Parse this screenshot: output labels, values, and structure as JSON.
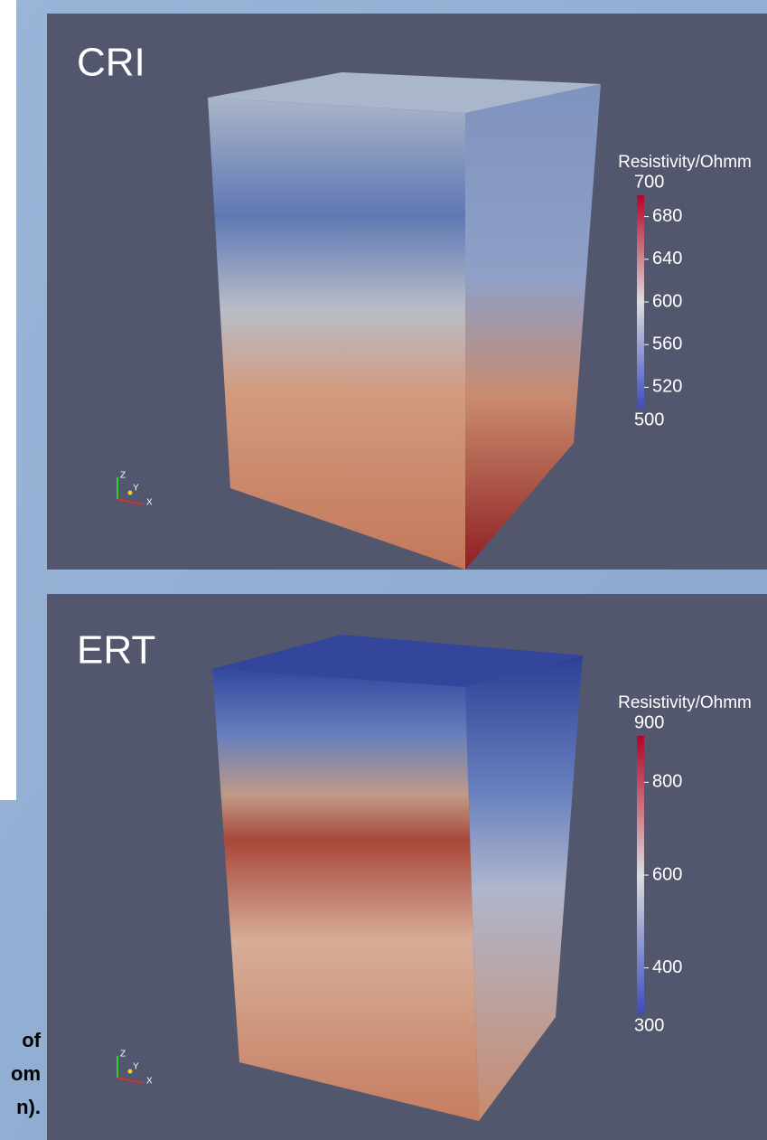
{
  "panels": [
    {
      "label": "CRI",
      "colorbar": {
        "title": "Resistivity/Ohmm",
        "range": [
          500,
          700
        ],
        "ticks": [
          520,
          560,
          600,
          640,
          680
        ]
      },
      "axes": [
        "Z",
        "Y",
        "X"
      ]
    },
    {
      "label": "ERT",
      "colorbar": {
        "title": "Resistivity/Ohmm",
        "range": [
          300,
          900
        ],
        "ticks": [
          400,
          600,
          800
        ]
      },
      "axes": [
        "Z",
        "Y",
        "X"
      ]
    }
  ],
  "caption_fragments": [
    "of",
    "om",
    "n)."
  ]
}
